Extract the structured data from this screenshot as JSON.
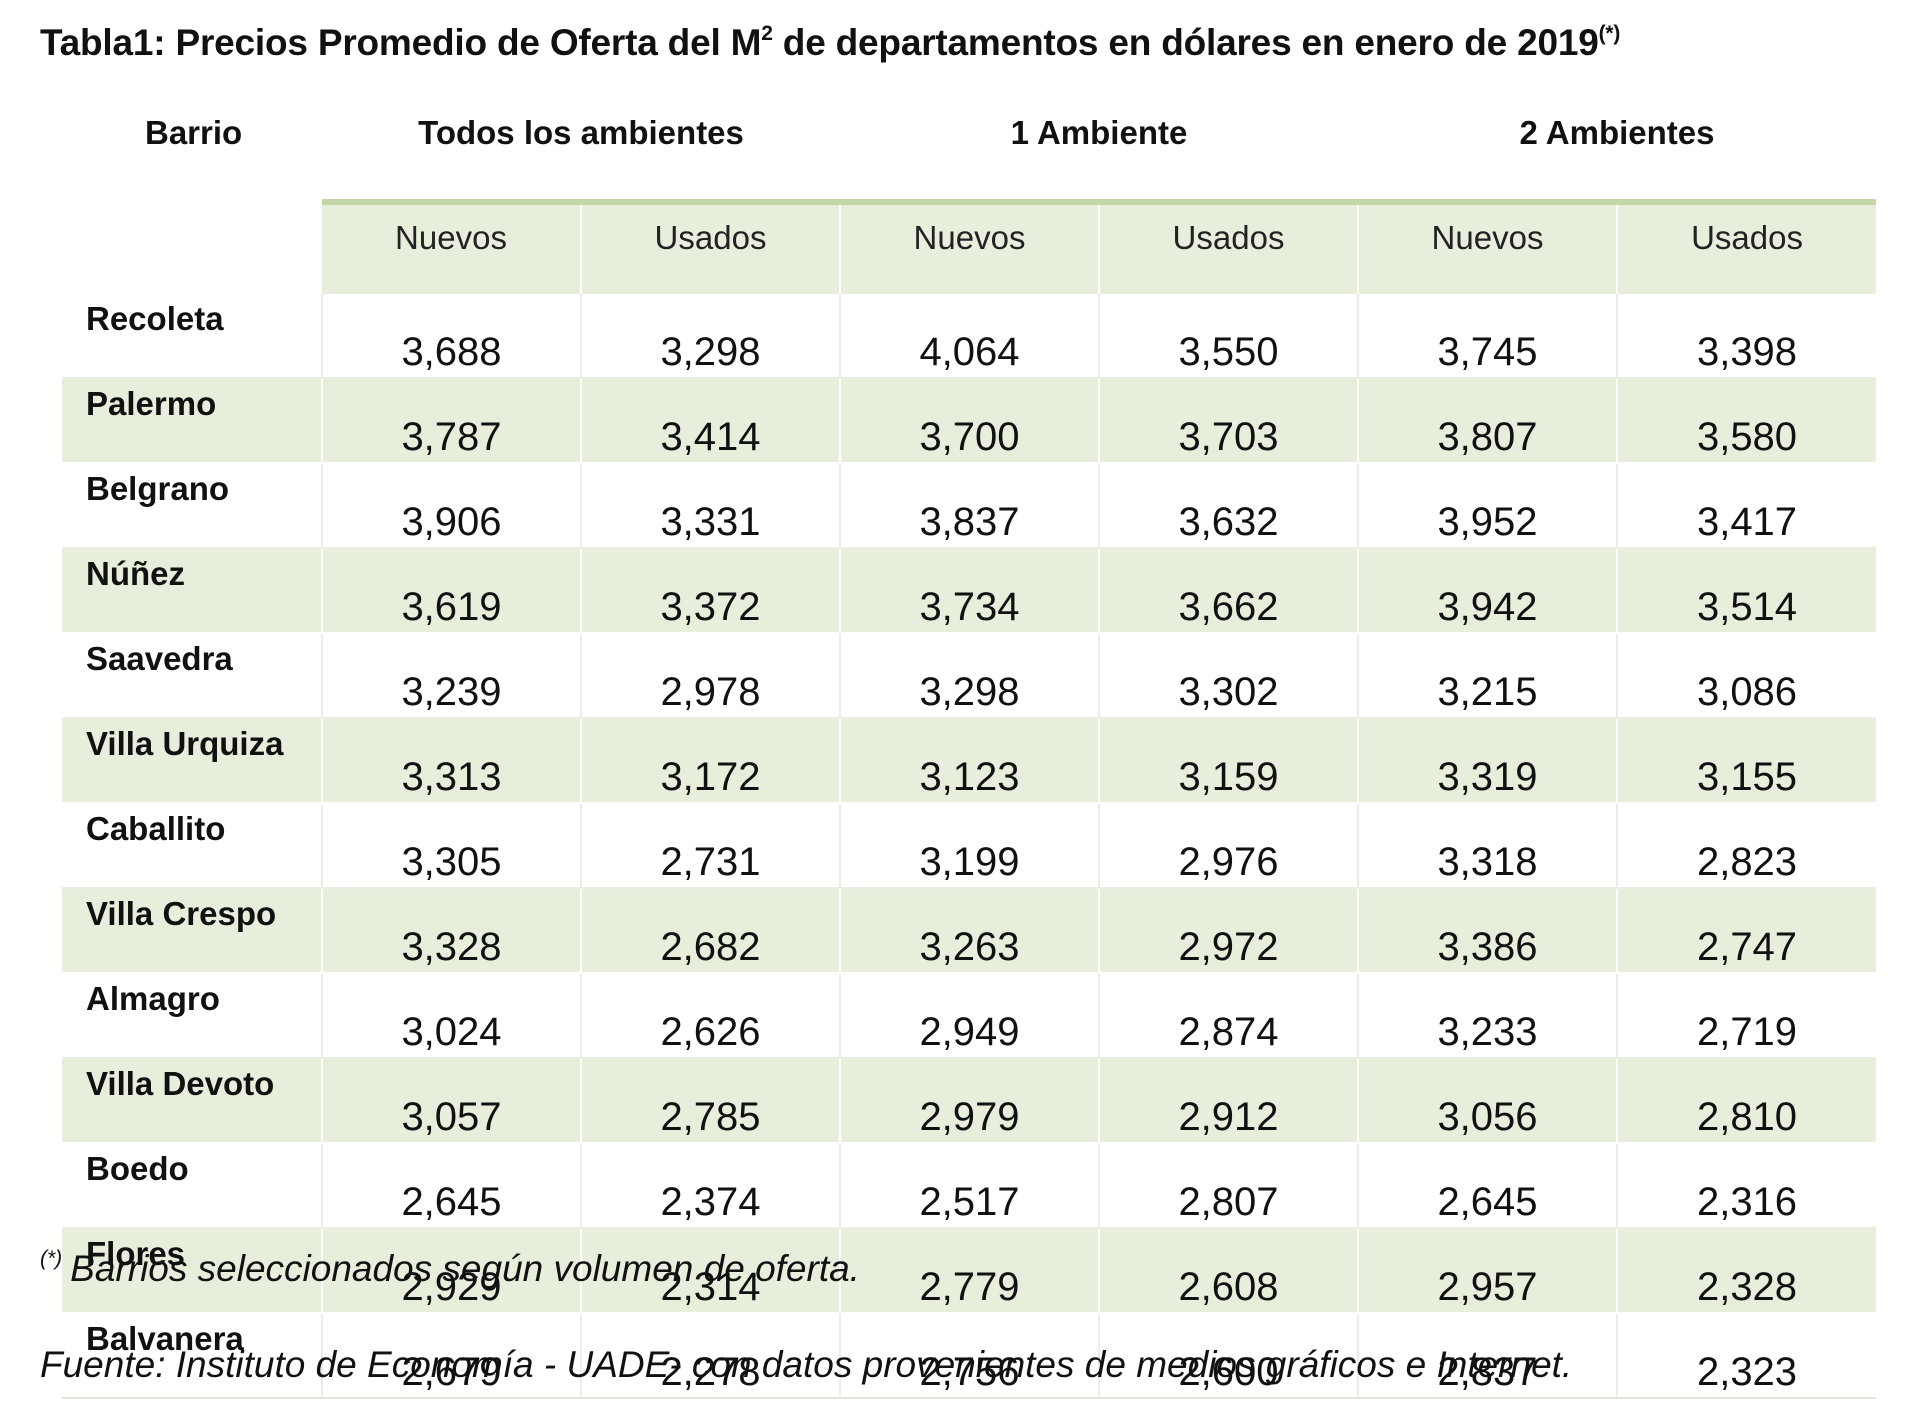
{
  "title": {
    "text": "Tabla1: Precios Promedio de Oferta del M",
    "superscript": "2",
    "text_after": " de departamentos en dólares en enero de 2019",
    "footnote_mark": "(*)"
  },
  "table": {
    "name_header": "Barrio",
    "groups": [
      "Todos los ambientes",
      "1 Ambiente",
      "2 Ambientes"
    ],
    "subheaders": [
      "Nuevos",
      "Usados",
      "Nuevos",
      "Usados",
      "Nuevos",
      "Usados"
    ],
    "rows": [
      {
        "barrio": "Recoleta",
        "values": [
          "3,688",
          "3,298",
          "4,064",
          "3,550",
          "3,745",
          "3,398"
        ]
      },
      {
        "barrio": "Palermo",
        "values": [
          "3,787",
          "3,414",
          "3,700",
          "3,703",
          "3,807",
          "3,580"
        ]
      },
      {
        "barrio": "Belgrano",
        "values": [
          "3,906",
          "3,331",
          "3,837",
          "3,632",
          "3,952",
          "3,417"
        ]
      },
      {
        "barrio": "Núñez",
        "values": [
          "3,619",
          "3,372",
          "3,734",
          "3,662",
          "3,942",
          "3,514"
        ]
      },
      {
        "barrio": "Saavedra",
        "values": [
          "3,239",
          "2,978",
          "3,298",
          "3,302",
          "3,215",
          "3,086"
        ]
      },
      {
        "barrio": "Villa Urquiza",
        "values": [
          "3,313",
          "3,172",
          "3,123",
          "3,159",
          "3,319",
          "3,155"
        ]
      },
      {
        "barrio": "Caballito",
        "values": [
          "3,305",
          "2,731",
          "3,199",
          "2,976",
          "3,318",
          "2,823"
        ]
      },
      {
        "barrio": "Villa Crespo",
        "values": [
          "3,328",
          "2,682",
          "3,263",
          "2,972",
          "3,386",
          "2,747"
        ]
      },
      {
        "barrio": "Almagro",
        "values": [
          "3,024",
          "2,626",
          "2,949",
          "2,874",
          "3,233",
          "2,719"
        ]
      },
      {
        "barrio": "Villa Devoto",
        "values": [
          "3,057",
          "2,785",
          "2,979",
          "2,912",
          "3,056",
          "2,810"
        ]
      },
      {
        "barrio": "Boedo",
        "values": [
          "2,645",
          "2,374",
          "2,517",
          "2,807",
          "2,645",
          "2,316"
        ]
      },
      {
        "barrio": "Flores",
        "values": [
          "2,929",
          "2,314",
          "2,779",
          "2,608",
          "2,957",
          "2,328"
        ]
      },
      {
        "barrio": "Balvanera",
        "values": [
          "2,679",
          "2,278",
          "2,756",
          "2,600",
          "2,837",
          "2,323"
        ]
      }
    ]
  },
  "footnote": {
    "mark": "(*)",
    "text": "Barrios seleccionados según volumen de oferta."
  },
  "source": "Fuente: Instituto de Economía - UADE- con datos provenientes de medios gráficos e Internet.",
  "colors": {
    "band": "#e7efdc",
    "header_rule": "#c3d7a8"
  }
}
